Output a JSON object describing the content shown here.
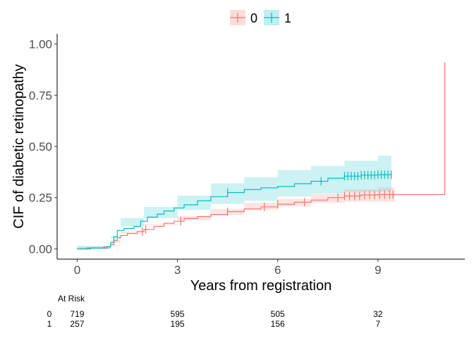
{
  "chart_data": {
    "type": "line",
    "subtype": "cumulative-incidence-step",
    "xlabel": "Years from registration",
    "ylabel": "CIF of diabetic retinopathy",
    "xlim": [
      -0.6,
      11.6
    ],
    "ylim": [
      -0.05,
      1.05
    ],
    "x_ticks": [
      0,
      3,
      6,
      9
    ],
    "x_tick_labels": [
      "0",
      "3",
      "6",
      "9"
    ],
    "y_ticks": [
      0,
      0.25,
      0.5,
      0.75,
      1.0
    ],
    "y_tick_labels": [
      "0.00",
      "0.25",
      "0.50",
      "0.75",
      "1.00"
    ],
    "grid": false,
    "legend": {
      "position": "top",
      "entries": [
        "0",
        "1"
      ]
    },
    "series": [
      {
        "name": "0",
        "color": "#F8766D",
        "band_color": "#F8766D",
        "steps": [
          [
            0,
            0
          ],
          [
            0.3,
            0.005
          ],
          [
            0.8,
            0.01
          ],
          [
            1.0,
            0.02
          ],
          [
            1.1,
            0.04
          ],
          [
            1.2,
            0.055
          ],
          [
            1.3,
            0.065
          ],
          [
            1.5,
            0.075
          ],
          [
            1.8,
            0.085
          ],
          [
            2.0,
            0.095
          ],
          [
            2.3,
            0.11
          ],
          [
            2.6,
            0.125
          ],
          [
            2.9,
            0.135
          ],
          [
            3.2,
            0.148
          ],
          [
            3.6,
            0.158
          ],
          [
            4.0,
            0.168
          ],
          [
            4.5,
            0.182
          ],
          [
            5.0,
            0.195
          ],
          [
            5.5,
            0.205
          ],
          [
            6.0,
            0.218
          ],
          [
            6.5,
            0.228
          ],
          [
            7.0,
            0.238
          ],
          [
            7.5,
            0.25
          ],
          [
            8.0,
            0.258
          ],
          [
            8.5,
            0.263
          ],
          [
            9.0,
            0.265
          ],
          [
            9.5,
            0.265
          ],
          [
            11.0,
            0.265
          ],
          [
            11.0,
            0.91
          ]
        ],
        "upper": [
          [
            0,
            0
          ],
          [
            1.0,
            0.03
          ],
          [
            1.3,
            0.085
          ],
          [
            2.0,
            0.12
          ],
          [
            3.0,
            0.16
          ],
          [
            4.0,
            0.195
          ],
          [
            5.0,
            0.225
          ],
          [
            6.0,
            0.245
          ],
          [
            7.0,
            0.268
          ],
          [
            8.0,
            0.29
          ],
          [
            9.0,
            0.3
          ],
          [
            9.5,
            0.31
          ]
        ],
        "lower": [
          [
            0,
            0
          ],
          [
            1.0,
            0.01
          ],
          [
            1.3,
            0.045
          ],
          [
            2.0,
            0.075
          ],
          [
            3.0,
            0.115
          ],
          [
            4.0,
            0.14
          ],
          [
            5.0,
            0.165
          ],
          [
            6.0,
            0.19
          ],
          [
            7.0,
            0.208
          ],
          [
            8.0,
            0.225
          ],
          [
            9.0,
            0.23
          ],
          [
            9.5,
            0.23
          ]
        ],
        "censor_x": [
          1.95,
          2.05,
          3.1,
          4.5,
          5.6,
          6.0,
          6.8,
          7.8,
          8.0,
          8.15,
          8.3,
          8.45,
          8.6,
          8.75,
          8.9,
          9.05,
          9.2,
          9.35,
          9.45
        ]
      },
      {
        "name": "1",
        "color": "#00BFC4",
        "band_color": "#00BFC4",
        "steps": [
          [
            0,
            0
          ],
          [
            0.4,
            0.004
          ],
          [
            0.9,
            0.01
          ],
          [
            1.0,
            0.03
          ],
          [
            1.1,
            0.06
          ],
          [
            1.2,
            0.09
          ],
          [
            1.4,
            0.1
          ],
          [
            1.7,
            0.11
          ],
          [
            1.9,
            0.135
          ],
          [
            2.1,
            0.155
          ],
          [
            2.4,
            0.17
          ],
          [
            2.6,
            0.185
          ],
          [
            2.9,
            0.2
          ],
          [
            3.2,
            0.215
          ],
          [
            3.6,
            0.235
          ],
          [
            4.0,
            0.255
          ],
          [
            4.5,
            0.275
          ],
          [
            5.0,
            0.29
          ],
          [
            5.5,
            0.298
          ],
          [
            6.0,
            0.305
          ],
          [
            6.5,
            0.318
          ],
          [
            7.0,
            0.33
          ],
          [
            7.5,
            0.345
          ],
          [
            8.0,
            0.355
          ],
          [
            8.5,
            0.36
          ],
          [
            9.0,
            0.362
          ],
          [
            9.4,
            0.362
          ]
        ],
        "upper": [
          [
            0,
            0
          ],
          [
            1.0,
            0.05
          ],
          [
            1.3,
            0.15
          ],
          [
            2.0,
            0.205
          ],
          [
            3.0,
            0.26
          ],
          [
            4.0,
            0.32
          ],
          [
            5.0,
            0.35
          ],
          [
            6.0,
            0.385
          ],
          [
            7.0,
            0.405
          ],
          [
            8.0,
            0.43
          ],
          [
            9.0,
            0.455
          ],
          [
            9.4,
            0.46
          ]
        ],
        "lower": [
          [
            0,
            0
          ],
          [
            1.0,
            0.015
          ],
          [
            1.3,
            0.06
          ],
          [
            2.0,
            0.11
          ],
          [
            3.0,
            0.15
          ],
          [
            4.0,
            0.19
          ],
          [
            5.0,
            0.22
          ],
          [
            6.0,
            0.235
          ],
          [
            7.0,
            0.255
          ],
          [
            8.0,
            0.27
          ],
          [
            9.0,
            0.28
          ],
          [
            9.4,
            0.28
          ]
        ],
        "censor_x": [
          4.5,
          7.3,
          8.0,
          8.1,
          8.2,
          8.3,
          8.4,
          8.5,
          8.6,
          8.7,
          8.8,
          8.9,
          9.0,
          9.1,
          9.2,
          9.3,
          9.4
        ]
      }
    ],
    "risk_table": {
      "title": "At Risk",
      "times": [
        0,
        3,
        6,
        9
      ],
      "rows": [
        {
          "group": "0",
          "counts": [
            "719",
            "595",
            "505",
            "32"
          ]
        },
        {
          "group": "1",
          "counts": [
            "257",
            "195",
            "156",
            "7"
          ]
        }
      ]
    }
  }
}
